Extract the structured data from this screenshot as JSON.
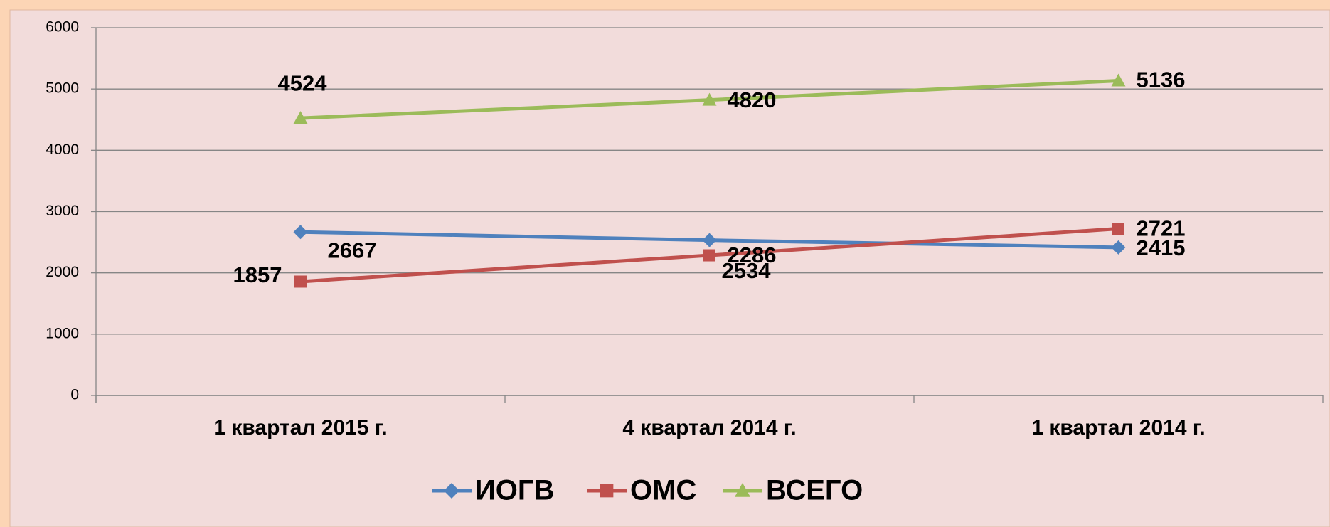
{
  "chart_data": {
    "type": "line",
    "categories": [
      "1 квартал 2015 г.",
      "4 квартал 2014 г.",
      "1 квартал 2014 г."
    ],
    "series": [
      {
        "name": "ИОГВ",
        "color": "#4f81bd",
        "marker": "diamond",
        "values": [
          2667,
          2534,
          2415
        ]
      },
      {
        "name": "ОМС",
        "color": "#c0504d",
        "marker": "square",
        "values": [
          1857,
          2286,
          2721
        ]
      },
      {
        "name": "ВСЕГО",
        "color": "#9bbb59",
        "marker": "triangle",
        "values": [
          4524,
          4820,
          5136
        ]
      }
    ],
    "ylim": [
      0,
      6000
    ],
    "yticks": [
      0,
      1000,
      2000,
      3000,
      4000,
      5000,
      6000
    ],
    "grid": true,
    "legend": "bottom"
  }
}
